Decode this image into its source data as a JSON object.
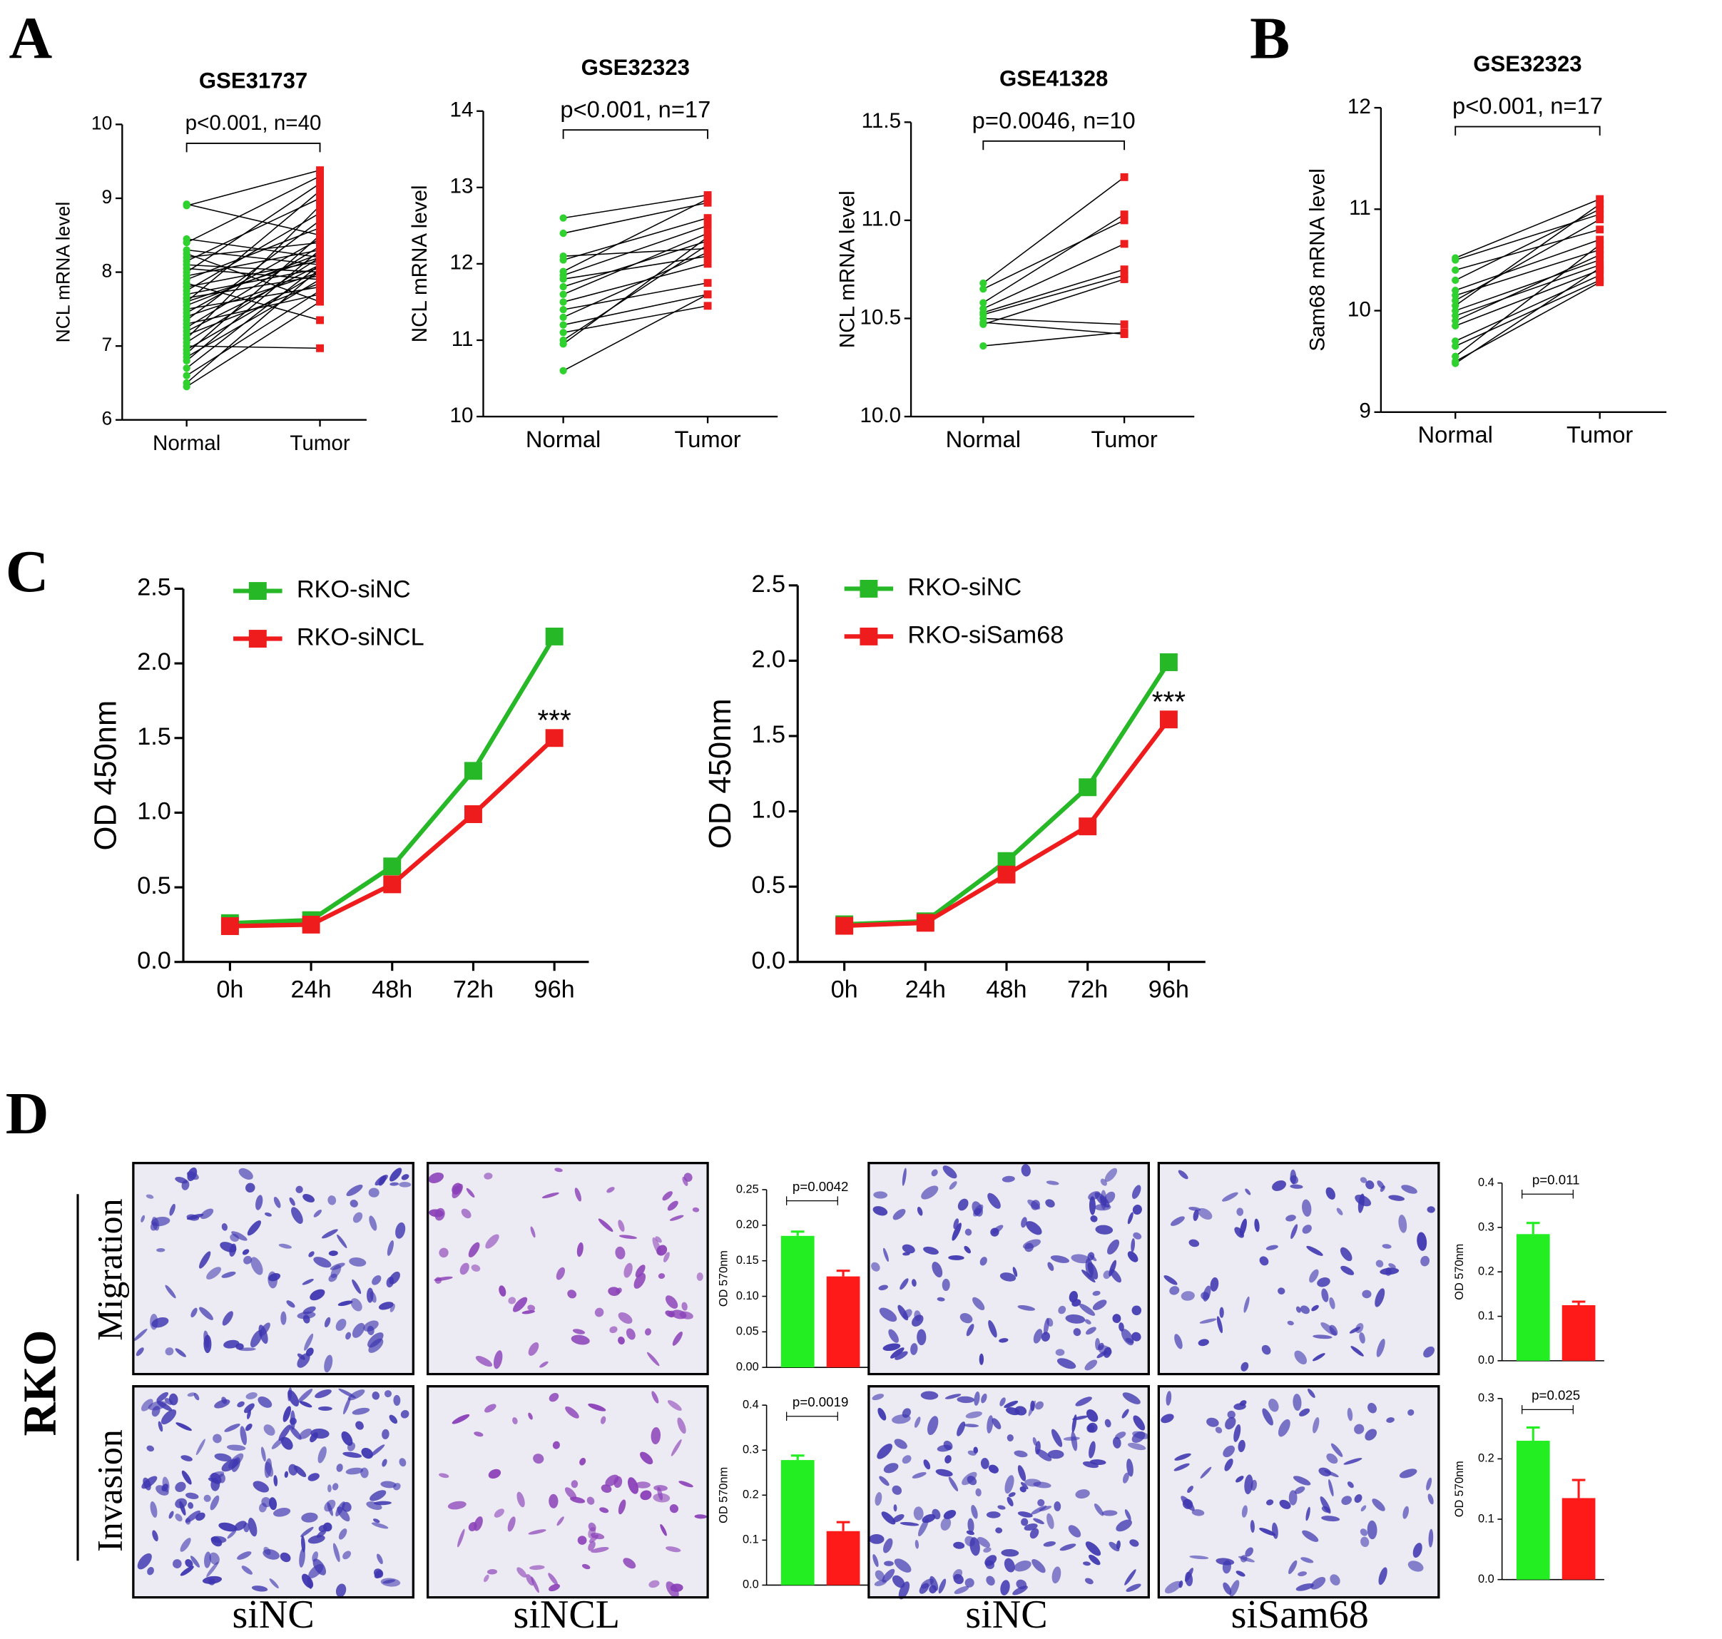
{
  "figure": {
    "panel_labels": [
      "A",
      "B",
      "C",
      "D"
    ],
    "cell_line": "RKO",
    "rows": [
      "Migration",
      "Invasion"
    ],
    "columns": [
      "siNC",
      "siNCL",
      "siNC",
      "siSam68"
    ]
  },
  "chart_data": [
    {
      "type": "paired",
      "title": "GSE31737",
      "y_label": "NCL mRNA level",
      "annotation": "p<0.001, n=40",
      "categories": [
        "Normal",
        "Tumor"
      ],
      "colors": [
        "#2ed12e",
        "#ee1c1c"
      ],
      "pairs": [
        [
          8.92,
          8.5
        ],
        [
          8.9,
          9.38
        ],
        [
          8.45,
          8.2
        ],
        [
          8.4,
          9.3
        ],
        [
          8.3,
          8.1
        ],
        [
          8.25,
          7.6
        ],
        [
          8.2,
          8.4
        ],
        [
          8.15,
          9.0
        ],
        [
          8.1,
          8.0
        ],
        [
          8.05,
          7.9
        ],
        [
          8.0,
          9.2
        ],
        [
          7.95,
          8.3
        ],
        [
          7.9,
          8.6
        ],
        [
          7.85,
          7.35
        ],
        [
          7.8,
          8.15
        ],
        [
          7.75,
          8.8
        ],
        [
          7.7,
          8.05
        ],
        [
          7.65,
          7.95
        ],
        [
          7.6,
          9.1
        ],
        [
          7.55,
          8.25
        ],
        [
          7.5,
          7.8
        ],
        [
          7.45,
          8.45
        ],
        [
          7.4,
          8.0
        ],
        [
          7.35,
          8.7
        ],
        [
          7.3,
          7.7
        ],
        [
          7.25,
          8.35
        ],
        [
          7.2,
          8.1
        ],
        [
          7.15,
          7.85
        ],
        [
          7.1,
          8.9
        ],
        [
          7.05,
          8.2
        ],
        [
          7.0,
          6.97
        ],
        [
          6.95,
          8.0
        ],
        [
          6.9,
          8.5
        ],
        [
          6.85,
          7.9
        ],
        [
          6.8,
          8.3
        ],
        [
          6.7,
          8.1
        ],
        [
          6.6,
          7.75
        ],
        [
          6.5,
          8.05
        ],
        [
          6.45,
          7.6
        ],
        [
          7.6,
          8.2
        ]
      ],
      "ylim": [
        6,
        10
      ],
      "yticks": [
        6,
        7,
        8,
        9,
        10
      ]
    },
    {
      "type": "paired",
      "title": "GSE32323",
      "y_label": "NCL mRNA level",
      "annotation": "p<0.001, n=17",
      "categories": [
        "Normal",
        "Tumor"
      ],
      "colors": [
        "#2ed12e",
        "#ee1c1c"
      ],
      "pairs": [
        [
          12.6,
          12.9
        ],
        [
          12.4,
          12.8
        ],
        [
          12.1,
          12.2
        ],
        [
          12.05,
          12.6
        ],
        [
          11.85,
          12.5
        ],
        [
          11.8,
          12.1
        ],
        [
          11.7,
          12.3
        ],
        [
          11.6,
          12.4
        ],
        [
          11.5,
          12.0
        ],
        [
          11.4,
          11.75
        ],
        [
          11.3,
          12.15
        ],
        [
          11.2,
          11.6
        ],
        [
          11.1,
          11.45
        ],
        [
          11.0,
          12.25
        ],
        [
          10.95,
          12.35
        ],
        [
          10.6,
          11.6
        ],
        [
          11.9,
          12.85
        ]
      ],
      "ylim": [
        10,
        14
      ],
      "yticks": [
        10,
        11,
        12,
        13,
        14
      ]
    },
    {
      "type": "paired",
      "title": "GSE41328",
      "y_label": "NCL mRNA level",
      "annotation": "p=0.0046, n=10",
      "categories": [
        "Normal",
        "Tumor"
      ],
      "colors": [
        "#2ed12e",
        "#ee1c1c"
      ],
      "pairs": [
        [
          10.68,
          11.22
        ],
        [
          10.65,
          11.0
        ],
        [
          10.58,
          11.03
        ],
        [
          10.55,
          10.88
        ],
        [
          10.53,
          10.75
        ],
        [
          10.52,
          10.72
        ],
        [
          10.5,
          10.47
        ],
        [
          10.48,
          10.42
        ],
        [
          10.47,
          10.7
        ],
        [
          10.36,
          10.43
        ]
      ],
      "ylim": [
        10.0,
        11.5
      ],
      "yticks": [
        {
          "value": 10,
          "label": "10.0"
        },
        {
          "value": 10.5,
          "label": "10.5"
        },
        {
          "value": 11,
          "label": "11.0"
        },
        {
          "value": 11.5,
          "label": "11.5"
        }
      ]
    },
    {
      "type": "paired",
      "title": "GSE32323",
      "y_label": "Sam68 mRNA level",
      "annotation": "p<0.001, n=17",
      "categories": [
        "Normal",
        "Tumor"
      ],
      "colors": [
        "#2ed12e",
        "#ee1c1c"
      ],
      "pairs": [
        [
          10.52,
          11.1
        ],
        [
          10.5,
          10.95
        ],
        [
          10.4,
          10.8
        ],
        [
          10.3,
          11.0
        ],
        [
          10.2,
          10.7
        ],
        [
          10.15,
          10.6
        ],
        [
          10.1,
          10.9
        ],
        [
          10.0,
          10.5
        ],
        [
          9.95,
          10.45
        ],
        [
          9.9,
          10.55
        ],
        [
          9.85,
          10.4
        ],
        [
          9.7,
          10.35
        ],
        [
          9.65,
          10.3
        ],
        [
          9.55,
          10.65
        ],
        [
          9.5,
          10.28
        ],
        [
          9.48,
          10.42
        ],
        [
          10.05,
          11.05
        ]
      ],
      "ylim": [
        9,
        12
      ],
      "yticks": [
        9,
        10,
        11,
        12
      ]
    },
    {
      "type": "line",
      "y_label": "OD 450nm",
      "categories": [
        "0h",
        "24h",
        "48h",
        "72h",
        "96h"
      ],
      "legend": "upper left",
      "annotation": "***",
      "series": [
        {
          "name": "RKO-siNC",
          "color": "#26b826",
          "values": [
            0.26,
            0.28,
            0.64,
            1.28,
            2.18
          ]
        },
        {
          "name": "RKO-siNCL",
          "color": "#ee1c1c",
          "values": [
            0.24,
            0.25,
            0.52,
            0.99,
            1.5
          ]
        }
      ],
      "ylim": [
        0,
        2.5
      ],
      "yticks": [
        {
          "value": 0,
          "label": "0.0"
        },
        {
          "value": 0.5,
          "label": "0.5"
        },
        {
          "value": 1,
          "label": "1.0"
        },
        {
          "value": 1.5,
          "label": "1.5"
        },
        {
          "value": 2,
          "label": "2.0"
        },
        {
          "value": 2.5,
          "label": "2.5"
        }
      ]
    },
    {
      "type": "line",
      "y_label": "OD 450nm",
      "categories": [
        "0h",
        "24h",
        "48h",
        "72h",
        "96h"
      ],
      "legend": "upper left",
      "annotation": "***",
      "series": [
        {
          "name": "RKO-siNC",
          "color": "#26b826",
          "values": [
            0.25,
            0.27,
            0.67,
            1.16,
            1.99
          ]
        },
        {
          "name": "RKO-siSam68",
          "color": "#ee1c1c",
          "values": [
            0.24,
            0.26,
            0.58,
            0.9,
            1.61
          ]
        }
      ],
      "ylim": [
        0,
        2.5
      ],
      "yticks": [
        {
          "value": 0,
          "label": "0.0"
        },
        {
          "value": 0.5,
          "label": "0.5"
        },
        {
          "value": 1,
          "label": "1.0"
        },
        {
          "value": 1.5,
          "label": "1.5"
        },
        {
          "value": 2,
          "label": "2.0"
        },
        {
          "value": 2.5,
          "label": "2.5"
        }
      ]
    },
    {
      "type": "bar",
      "y_label": "OD 570nm",
      "annotation": "p=0.0042",
      "categories": [
        null,
        null
      ],
      "colors": [
        "#22ee22",
        "#ff1a1a"
      ],
      "values": [
        0.185,
        0.128
      ],
      "errors": [
        0.006,
        0.008
      ],
      "ylim": [
        0,
        0.25
      ],
      "yticks": [
        {
          "value": 0,
          "label": "0.00"
        },
        {
          "value": 0.05,
          "label": "0.05"
        },
        {
          "value": 0.1,
          "label": "0.10"
        },
        {
          "value": 0.15,
          "label": "0.15"
        },
        {
          "value": 0.2,
          "label": "0.20"
        },
        {
          "value": 0.25,
          "label": "0.25"
        }
      ]
    },
    {
      "type": "bar",
      "y_label": "OD 570nm",
      "annotation": "p=0.0019",
      "categories": [
        null,
        null
      ],
      "colors": [
        "#22ee22",
        "#ff1a1a"
      ],
      "values": [
        0.278,
        0.12
      ],
      "errors": [
        0.01,
        0.02
      ],
      "ylim": [
        0,
        0.4
      ],
      "yticks": [
        {
          "value": 0,
          "label": "0.0"
        },
        {
          "value": 0.1,
          "label": "0.1"
        },
        {
          "value": 0.2,
          "label": "0.2"
        },
        {
          "value": 0.3,
          "label": "0.3"
        },
        {
          "value": 0.4,
          "label": "0.4"
        }
      ]
    },
    {
      "type": "bar",
      "y_label": "OD 570nm",
      "annotation": "p=0.011",
      "categories": [
        null,
        null
      ],
      "colors": [
        "#22ee22",
        "#ff1a1a"
      ],
      "values": [
        0.285,
        0.125
      ],
      "errors": [
        0.025,
        0.008
      ],
      "ylim": [
        0,
        0.4
      ],
      "yticks": [
        {
          "value": 0,
          "label": "0.0"
        },
        {
          "value": 0.1,
          "label": "0.1"
        },
        {
          "value": 0.2,
          "label": "0.2"
        },
        {
          "value": 0.3,
          "label": "0.3"
        },
        {
          "value": 0.4,
          "label": "0.4"
        }
      ]
    },
    {
      "type": "bar",
      "y_label": "OD 570nm",
      "annotation": "p=0.025",
      "categories": [
        null,
        null
      ],
      "colors": [
        "#22ee22",
        "#ff1a1a"
      ],
      "values": [
        0.23,
        0.135
      ],
      "errors": [
        0.022,
        0.03
      ],
      "ylim": [
        0,
        0.3
      ],
      "yticks": [
        {
          "value": 0,
          "label": "0.0"
        },
        {
          "value": 0.1,
          "label": "0.1"
        },
        {
          "value": 0.2,
          "label": "0.2"
        },
        {
          "value": 0.3,
          "label": "0.3"
        }
      ]
    }
  ]
}
